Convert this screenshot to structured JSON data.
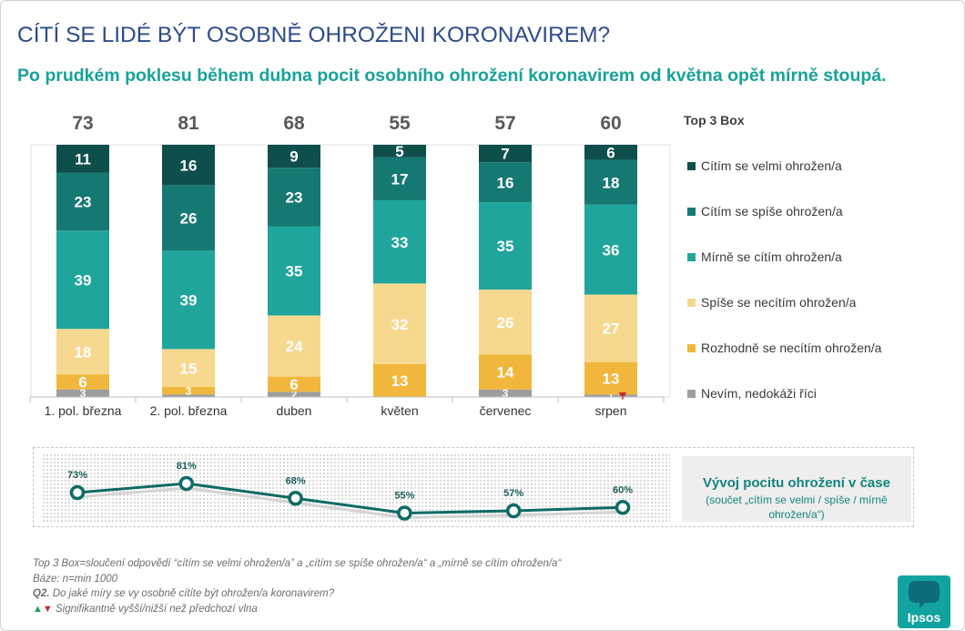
{
  "header": {
    "title": "CÍTÍ SE LIDÉ BÝT OSOBNĚ OHROŽENI KORONAVIREM?",
    "subtitle": "Po prudkém poklesu během dubna pocit osobního ohrožení koronavirem od května opět mírně stoupá.",
    "title_color": "#2d4b8b",
    "subtitle_color": "#17a29a"
  },
  "chart_data": [
    {
      "type": "bar",
      "stacked": true,
      "legend_placement": "right",
      "grid": false,
      "categories": [
        "1. pol. března",
        "2. pol. března",
        "duben",
        "květen",
        "červenec",
        "srpen"
      ],
      "totals": {
        "label": "Top 3 Box",
        "values": [
          73,
          81,
          68,
          55,
          57,
          60
        ]
      },
      "series": [
        {
          "name": "Cítím se velmi ohrožen/a",
          "color": "#0e4f4b",
          "values": [
            11,
            16,
            9,
            5,
            7,
            6
          ],
          "labels": [
            "11",
            "16",
            "9",
            "5",
            "7",
            "6"
          ]
        },
        {
          "name": "Cítím se spíše ohrožen/a",
          "color": "#167872",
          "values": [
            23,
            26,
            23,
            17,
            16,
            18
          ],
          "labels": [
            "23",
            "26",
            "23",
            "17",
            "16",
            "18"
          ]
        },
        {
          "name": "Mírně se cítím ohrožen/a",
          "color": "#20a59c",
          "values": [
            39,
            39,
            35,
            33,
            35,
            36
          ],
          "labels": [
            "39",
            "39",
            "35",
            "33",
            "35",
            "36"
          ]
        },
        {
          "name": "Spíše se necítím ohrožen/a",
          "color": "#f6d98f",
          "values": [
            18,
            15,
            24,
            32,
            26,
            27
          ],
          "labels": [
            "18",
            "15",
            "24",
            "32",
            "26",
            "27"
          ]
        },
        {
          "name": "Rozhodně se necítím ohrožen/a",
          "color": "#f1b73d",
          "values": [
            6,
            3,
            6,
            13,
            14,
            13
          ],
          "labels": [
            "6",
            "3",
            "6",
            "13",
            "14",
            "13"
          ]
        },
        {
          "name": "Nevím, nedokáži říci",
          "color": "#9d9d9d",
          "values": [
            3,
            1,
            2,
            0,
            3,
            1
          ],
          "labels": [
            "3",
            "",
            "2",
            "",
            "3",
            "1"
          ]
        }
      ],
      "significance_markers": [
        {
          "category": "srpen",
          "series": "Nevím, nedokáži říci",
          "direction": "down",
          "symbol": "▼",
          "color": "#c42b2b"
        }
      ]
    },
    {
      "type": "line",
      "title": "Vývoj pocitu ohrožení v čase",
      "subtitle": "(součet „cítím se velmi / spíše / mírně ohrožen/a“)",
      "values": [
        73,
        81,
        68,
        55,
        57,
        60
      ],
      "labels": [
        "73%",
        "81%",
        "68%",
        "55%",
        "57%",
        "60%"
      ],
      "color": "#0f6b65",
      "grid": false
    }
  ],
  "footer": {
    "definition": "Top 3 Box=sloučení odpovědí “cítím se velmi ohrožen/a” a „cítím se spíše ohrožen/a“ a „mírně se cítím ohrožen/a“",
    "base": "Báze: n=min 1000",
    "question_label": "Q2.",
    "question_text": " Do jaké míry se vy osobně cítíte být ohrožen/a koronavirem?",
    "significance_up": "▲",
    "significance_down": "▼",
    "significance_text": " Signifikantně vyšší/nižší než předchozí vlna",
    "up_color": "#1e9a61",
    "down_color": "#c42b2b"
  },
  "logo": {
    "text": "Ipsos",
    "icon": "ipsos-logo",
    "color": "#12a3a0"
  }
}
